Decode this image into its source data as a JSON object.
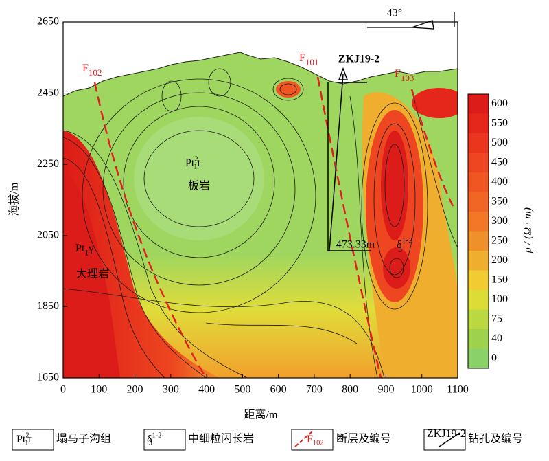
{
  "chart_data": {
    "type": "contour",
    "xlabel": "距离/m",
    "ylabel": "海拔/m",
    "xlim": [
      0,
      1100
    ],
    "xticks": [
      0,
      100,
      200,
      300,
      400,
      500,
      600,
      700,
      800,
      900,
      1000,
      1100
    ],
    "ylim": [
      1650,
      2650
    ],
    "yticks": [
      1650,
      1850,
      2050,
      2250,
      2450,
      2650
    ],
    "colorbar": {
      "label": "ρ / (Ω · m)",
      "levels": [
        600,
        550,
        500,
        450,
        400,
        350,
        300,
        250,
        200,
        150,
        100,
        75,
        40,
        0
      ],
      "colors": [
        "#dc1c18",
        "#e4261b",
        "#ea361e",
        "#ee4620",
        "#f05622",
        "#f26625",
        "#f27828",
        "#f0902b",
        "#f0ae2f",
        "#f0cc32",
        "#dcdc36",
        "#bcd840",
        "#9ed24c",
        "#8ad268"
      ]
    },
    "annotations": {
      "strike": "43°",
      "faults": [
        {
          "main": "F",
          "sub": "102"
        },
        {
          "main": "F",
          "sub": "101"
        },
        {
          "main": "F",
          "sub": "103"
        }
      ],
      "borehole": "ZKJ19-2",
      "depth": "473.33m",
      "unit1": {
        "main": "Pt",
        "sup": "2",
        "sub": "1",
        "tail": "t"
      },
      "rock1": "板岩",
      "unit2": {
        "main": "Pt",
        "sub": "1",
        "tail": "γ"
      },
      "rock2": "大理岩",
      "unit3": {
        "main": "δ",
        "sup": "1-2",
        "sub": "3"
      }
    }
  },
  "legend": [
    {
      "symbol": {
        "main": "Pt",
        "sup": "2",
        "sub": "1",
        "tail": "t"
      },
      "text": "塌马子沟组"
    },
    {
      "symbol": {
        "main": "δ",
        "sup": "1-2",
        "sub": "3"
      },
      "text": "中细粒闪长岩"
    },
    {
      "symbol": {
        "main": "F",
        "sub": "102"
      },
      "text": "断层及编号"
    },
    {
      "symbol": {
        "main": "ZKJ19-2"
      },
      "text": "钻孔及编号"
    }
  ]
}
